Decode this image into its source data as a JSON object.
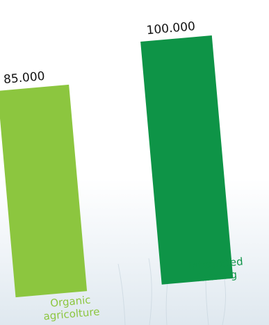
{
  "chart_data": {
    "type": "bar",
    "categories": [
      "Organic agricolture",
      "Integrated farming"
    ],
    "category_lines": [
      [
        "Organic",
        "agricolture"
      ],
      [
        "Integrated",
        "farming"
      ]
    ],
    "values": [
      85000,
      100000
    ],
    "value_labels": [
      "85.000",
      "100.000"
    ],
    "colors": [
      "#8cc63f",
      "#0e9447"
    ],
    "ylim": [
      0,
      100000
    ],
    "title": "",
    "xlabel": "",
    "ylabel": "",
    "grid": false,
    "legend": "none"
  }
}
